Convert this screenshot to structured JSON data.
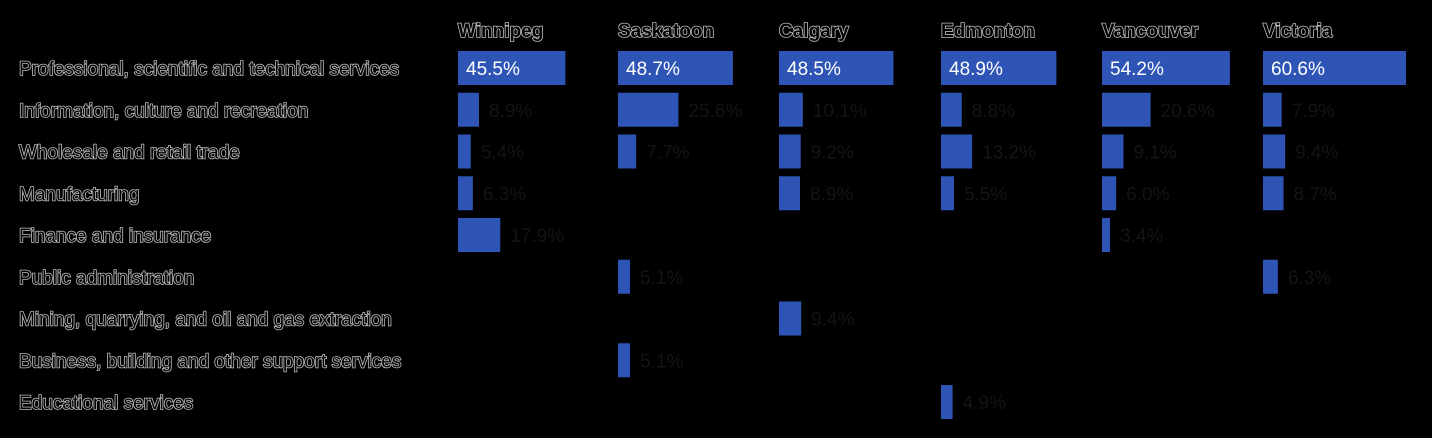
{
  "chart_data": {
    "type": "bar",
    "orientation": "horizontal",
    "panels": [
      "Winnipeg",
      "Saskatoon",
      "Calgary",
      "Edmonton",
      "Vancouver",
      "Victoria"
    ],
    "categories": [
      "Professional, scientific and technical services",
      "Information, culture and recreation",
      "Wholesale and retail trade",
      "Manufacturing",
      "Finance and insurance",
      "Public administration",
      "Mining, quarrying, and oil and gas extraction",
      "Business, building and other support services",
      "Educational services"
    ],
    "series": [
      {
        "panel": "Winnipeg",
        "values": [
          45.5,
          8.9,
          5.4,
          6.3,
          17.9,
          null,
          null,
          null,
          null
        ]
      },
      {
        "panel": "Saskatoon",
        "values": [
          48.7,
          25.6,
          7.7,
          null,
          null,
          5.1,
          null,
          5.1,
          null
        ]
      },
      {
        "panel": "Calgary",
        "values": [
          48.5,
          10.1,
          9.2,
          8.9,
          null,
          null,
          9.4,
          null,
          null
        ]
      },
      {
        "panel": "Edmonton",
        "values": [
          48.9,
          8.8,
          13.2,
          5.5,
          null,
          null,
          null,
          null,
          4.9
        ]
      },
      {
        "panel": "Vancouver",
        "values": [
          54.2,
          20.6,
          9.1,
          6.0,
          3.4,
          null,
          null,
          null,
          null
        ]
      },
      {
        "panel": "Victoria",
        "values": [
          60.6,
          7.9,
          9.4,
          8.7,
          null,
          6.3,
          null,
          null,
          null
        ]
      }
    ],
    "value_suffix": "%",
    "xlim": [
      0,
      60.6
    ],
    "title": "",
    "xlabel": "",
    "ylabel": "",
    "grid": false,
    "legend": "none",
    "colors": {
      "bar": "#2e55b5",
      "background": "#000000"
    }
  }
}
